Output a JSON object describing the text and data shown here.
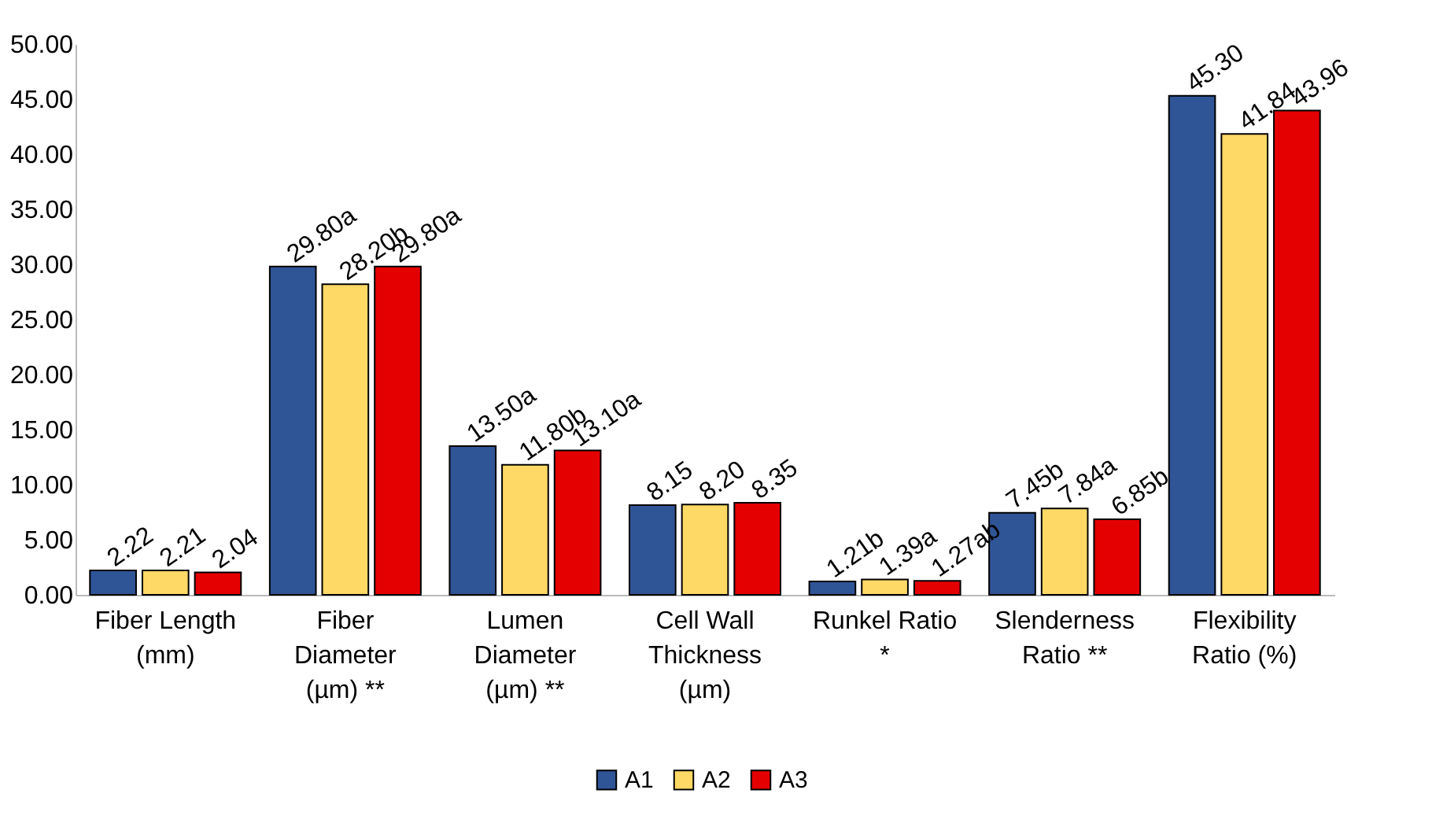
{
  "chart_data": {
    "type": "bar",
    "categories": [
      "Fiber Length (mm)",
      "Fiber Diameter (µm) **",
      "Lumen Diameter (µm) **",
      "Cell Wall Thickness (µm)",
      "Runkel Ratio *",
      "Slenderness Ratio **",
      "Flexibility Ratio (%)"
    ],
    "series": [
      {
        "name": "A1",
        "color": "#2f5597",
        "values": [
          2.22,
          29.8,
          13.5,
          8.15,
          1.21,
          7.45,
          45.3
        ],
        "value_labels": [
          "2.22",
          "29.80a",
          "13.50a",
          "8.15",
          "1.21b",
          "7.45b",
          "45.30"
        ]
      },
      {
        "name": "A2",
        "color": "#ffd966",
        "values": [
          2.21,
          28.2,
          11.8,
          8.2,
          1.39,
          7.84,
          41.84
        ],
        "value_labels": [
          "2.21",
          "28.20b",
          "11.80b",
          "8.20",
          "1.39a",
          "7.84a",
          "41.84"
        ]
      },
      {
        "name": "A3",
        "color": "#e50000",
        "values": [
          2.04,
          29.8,
          13.1,
          8.35,
          1.27,
          6.85,
          43.96
        ],
        "value_labels": [
          "2.04",
          "29.80a",
          "13.10a",
          "8.35",
          "1.27ab",
          "6.85b",
          "43.96"
        ]
      }
    ],
    "ylim": [
      0,
      50
    ],
    "yticks": [
      {
        "value": 0,
        "label": "0.00"
      },
      {
        "value": 5,
        "label": "5.00"
      },
      {
        "value": 10,
        "label": "10.00"
      },
      {
        "value": 15,
        "label": "15.00"
      },
      {
        "value": 20,
        "label": "20.00"
      },
      {
        "value": 25,
        "label": "25.00"
      },
      {
        "value": 30,
        "label": "30.00"
      },
      {
        "value": 35,
        "label": "35.00"
      },
      {
        "value": 40,
        "label": "40.00"
      },
      {
        "value": 45,
        "label": "45.00"
      },
      {
        "value": 50,
        "label": "50.00"
      }
    ],
    "grid": false,
    "legend": "bottom"
  }
}
